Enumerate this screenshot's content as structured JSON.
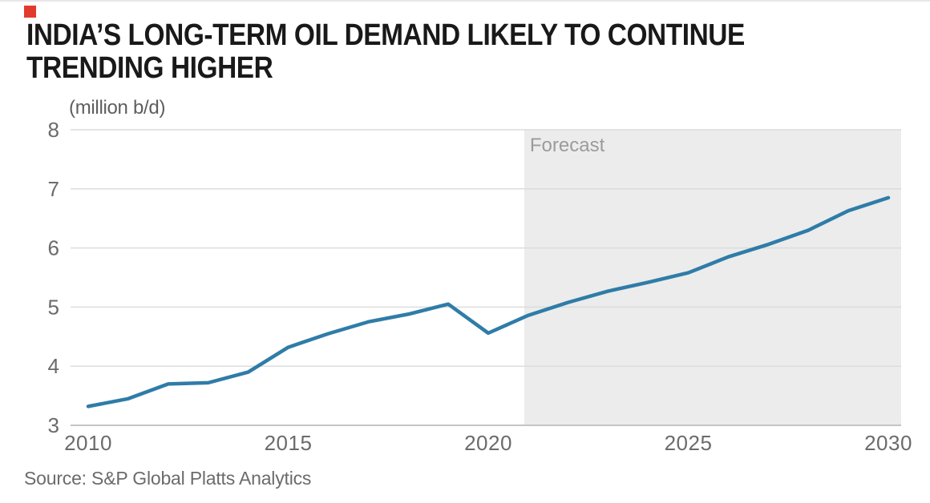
{
  "header": {
    "title_line1": "INDIA’S LONG-TERM OIL DEMAND LIKELY TO CONTINUE",
    "title_line2": "TRENDING HIGHER",
    "brand_color": "#E23B2E"
  },
  "chart_data": {
    "type": "line",
    "title": "INDIA'S LONG-TERM OIL DEMAND LIKELY TO CONTINUE TRENDING HIGHER",
    "unit_label": "(million b/d)",
    "series_name": "India oil demand (million b/d)",
    "x": [
      2010,
      2011,
      2012,
      2013,
      2014,
      2015,
      2016,
      2017,
      2018,
      2019,
      2020,
      2021,
      2022,
      2023,
      2024,
      2025,
      2026,
      2027,
      2028,
      2029,
      2030
    ],
    "values": [
      3.32,
      3.45,
      3.7,
      3.72,
      3.9,
      4.32,
      4.55,
      4.75,
      4.88,
      5.05,
      4.56,
      4.86,
      5.08,
      5.27,
      5.42,
      5.58,
      5.85,
      6.06,
      6.3,
      6.63,
      6.85
    ],
    "forecast_label": "Forecast",
    "forecast_start": 2021,
    "xticks": [
      2010,
      2015,
      2020,
      2025,
      2030
    ],
    "yticks": [
      3,
      4,
      5,
      6,
      7,
      8
    ],
    "xlim": [
      2010,
      2030
    ],
    "ylim": [
      3,
      8
    ],
    "xlabel": "",
    "ylabel": "(million b/d)",
    "grid": "horizontal",
    "legend_position": "none",
    "line_color": "#2F7CA8",
    "forecast_fill": "#ECECEC",
    "forecast_text_color": "#9B9B9B",
    "grid_color": "#DCDCDC",
    "axis_color": "#C4C4C4",
    "tick_color": "#6B6B6B"
  },
  "footer": {
    "source": "Source: S&P Global Platts Analytics"
  }
}
